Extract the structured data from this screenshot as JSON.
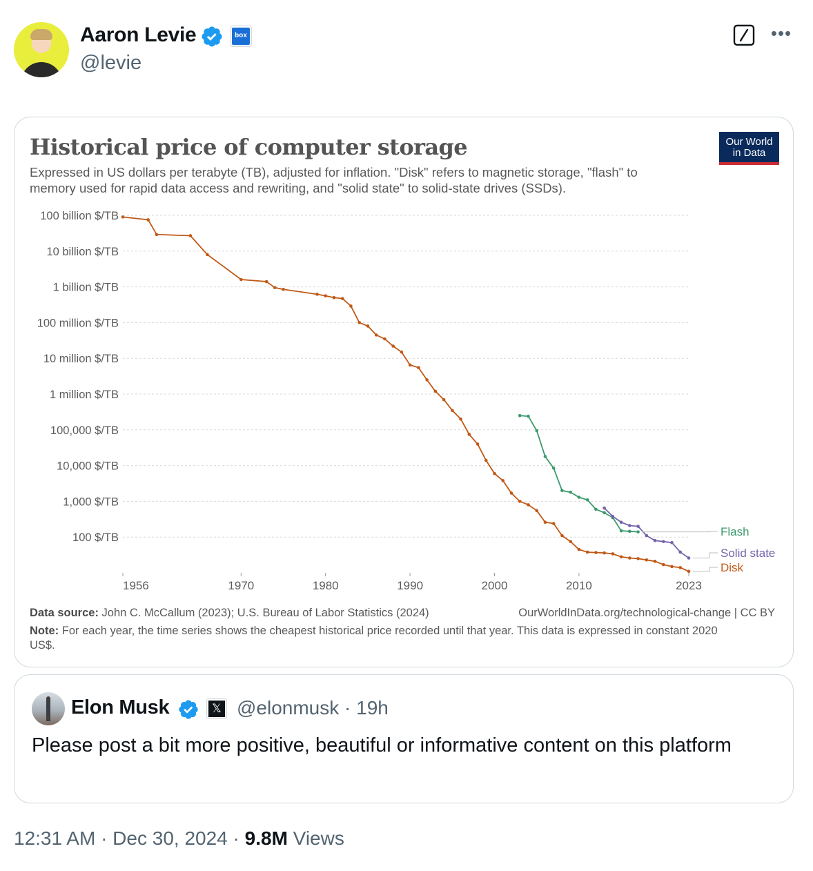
{
  "author": {
    "name": "Aaron Levie",
    "handle": "@levie",
    "affiliate_badge": "box"
  },
  "chart_image": {
    "title": "Historical price of computer storage",
    "subtitle": "Expressed in US dollars per terabyte (TB), adjusted for inflation. \"Disk\" refers to magnetic storage, \"flash\" to memory used for rapid data access and rewriting, and \"solid state\" to solid-state drives (SSDs).",
    "logo_line1": "Our World",
    "logo_line2": "in Data",
    "source_label": "Data source:",
    "source_text": "John C. McCallum (2023); U.S. Bureau of Labor Statistics (2024)",
    "url": "OurWorldInData.org/technological-change | CC BY",
    "note_label": "Note:",
    "note_text": "For each year, the time series shows the cheapest historical price recorded until that year. This data is expressed in constant 2020 US$."
  },
  "chart_data": {
    "type": "line",
    "title": "Historical price of computer storage",
    "y_scale": "log",
    "y_ticks": [
      {
        "value": 100000000000,
        "label": "100 billion $/TB"
      },
      {
        "value": 10000000000,
        "label": "10 billion $/TB"
      },
      {
        "value": 1000000000,
        "label": "1 billion $/TB"
      },
      {
        "value": 100000000,
        "label": "100 million $/TB"
      },
      {
        "value": 10000000,
        "label": "10 million $/TB"
      },
      {
        "value": 1000000,
        "label": "1 million $/TB"
      },
      {
        "value": 100000,
        "label": "100,000 $/TB"
      },
      {
        "value": 10000,
        "label": "10,000 $/TB"
      },
      {
        "value": 1000,
        "label": "1,000 $/TB"
      },
      {
        "value": 100,
        "label": "100 $/TB"
      }
    ],
    "x_ticks": [
      1956,
      1970,
      1980,
      1990,
      2000,
      2010,
      2023
    ],
    "xlim": [
      1956,
      2023
    ],
    "ylim": [
      10,
      100000000000
    ],
    "grid": true,
    "legend": "right, end labels",
    "series": [
      {
        "name": "Disk",
        "color": "#c05917",
        "points": [
          [
            1956,
            90000000000
          ],
          [
            1959,
            75000000000
          ],
          [
            1960,
            29000000000
          ],
          [
            1964,
            27000000000
          ],
          [
            1966,
            8000000000
          ],
          [
            1970,
            1600000000
          ],
          [
            1973,
            1400000000
          ],
          [
            1974,
            950000000
          ],
          [
            1975,
            850000000
          ],
          [
            1979,
            620000000
          ],
          [
            1980,
            560000000
          ],
          [
            1981,
            500000000
          ],
          [
            1982,
            470000000
          ],
          [
            1983,
            290000000
          ],
          [
            1984,
            100000000
          ],
          [
            1985,
            80000000
          ],
          [
            1986,
            45000000
          ],
          [
            1987,
            35000000
          ],
          [
            1988,
            22000000
          ],
          [
            1989,
            15000000
          ],
          [
            1990,
            6500000
          ],
          [
            1991,
            5500000
          ],
          [
            1992,
            2500000
          ],
          [
            1993,
            1200000
          ],
          [
            1994,
            700000
          ],
          [
            1995,
            350000
          ],
          [
            1996,
            200000
          ],
          [
            1997,
            75000
          ],
          [
            1998,
            40000
          ],
          [
            1999,
            14000
          ],
          [
            2000,
            6000
          ],
          [
            2001,
            3800
          ],
          [
            2002,
            1700
          ],
          [
            2003,
            1000
          ],
          [
            2004,
            800
          ],
          [
            2005,
            550
          ],
          [
            2006,
            260
          ],
          [
            2007,
            240
          ],
          [
            2008,
            110
          ],
          [
            2009,
            75
          ],
          [
            2010,
            45
          ],
          [
            2011,
            38
          ],
          [
            2012,
            37
          ],
          [
            2013,
            36
          ],
          [
            2014,
            34
          ],
          [
            2015,
            28
          ],
          [
            2016,
            26
          ],
          [
            2017,
            25
          ],
          [
            2018,
            23
          ],
          [
            2019,
            21
          ],
          [
            2020,
            17
          ],
          [
            2021,
            15
          ],
          [
            2022,
            14
          ],
          [
            2023,
            11
          ]
        ]
      },
      {
        "name": "Flash",
        "color": "#3c9a6d",
        "points": [
          [
            2003,
            250000
          ],
          [
            2004,
            240000
          ],
          [
            2005,
            95000
          ],
          [
            2006,
            18000
          ],
          [
            2007,
            8500
          ],
          [
            2008,
            2000
          ],
          [
            2009,
            1800
          ],
          [
            2010,
            1300
          ],
          [
            2011,
            1100
          ],
          [
            2012,
            600
          ],
          [
            2013,
            480
          ],
          [
            2014,
            350
          ],
          [
            2015,
            150
          ],
          [
            2016,
            145
          ],
          [
            2017,
            140
          ]
        ]
      },
      {
        "name": "Solid state",
        "color": "#7563aa",
        "points": [
          [
            2013,
            650
          ],
          [
            2014,
            380
          ],
          [
            2015,
            260
          ],
          [
            2016,
            210
          ],
          [
            2017,
            200
          ],
          [
            2018,
            110
          ],
          [
            2019,
            80
          ],
          [
            2020,
            75
          ],
          [
            2021,
            70
          ],
          [
            2022,
            38
          ],
          [
            2023,
            26
          ]
        ]
      }
    ]
  },
  "quoted_tweet": {
    "name": "Elon Musk",
    "badge": "𝕏",
    "handle_time": "@elonmusk · 19h",
    "text": "Please post a bit more positive, beautiful or informative content on this platform"
  },
  "footer": {
    "timestamp": "12:31 AM · Dec 30, 2024 · ",
    "views_count": "9.8M",
    "views_label": " Views"
  },
  "colors": {
    "verified_blue": "#1d9bf0",
    "text_secondary": "#536471"
  }
}
